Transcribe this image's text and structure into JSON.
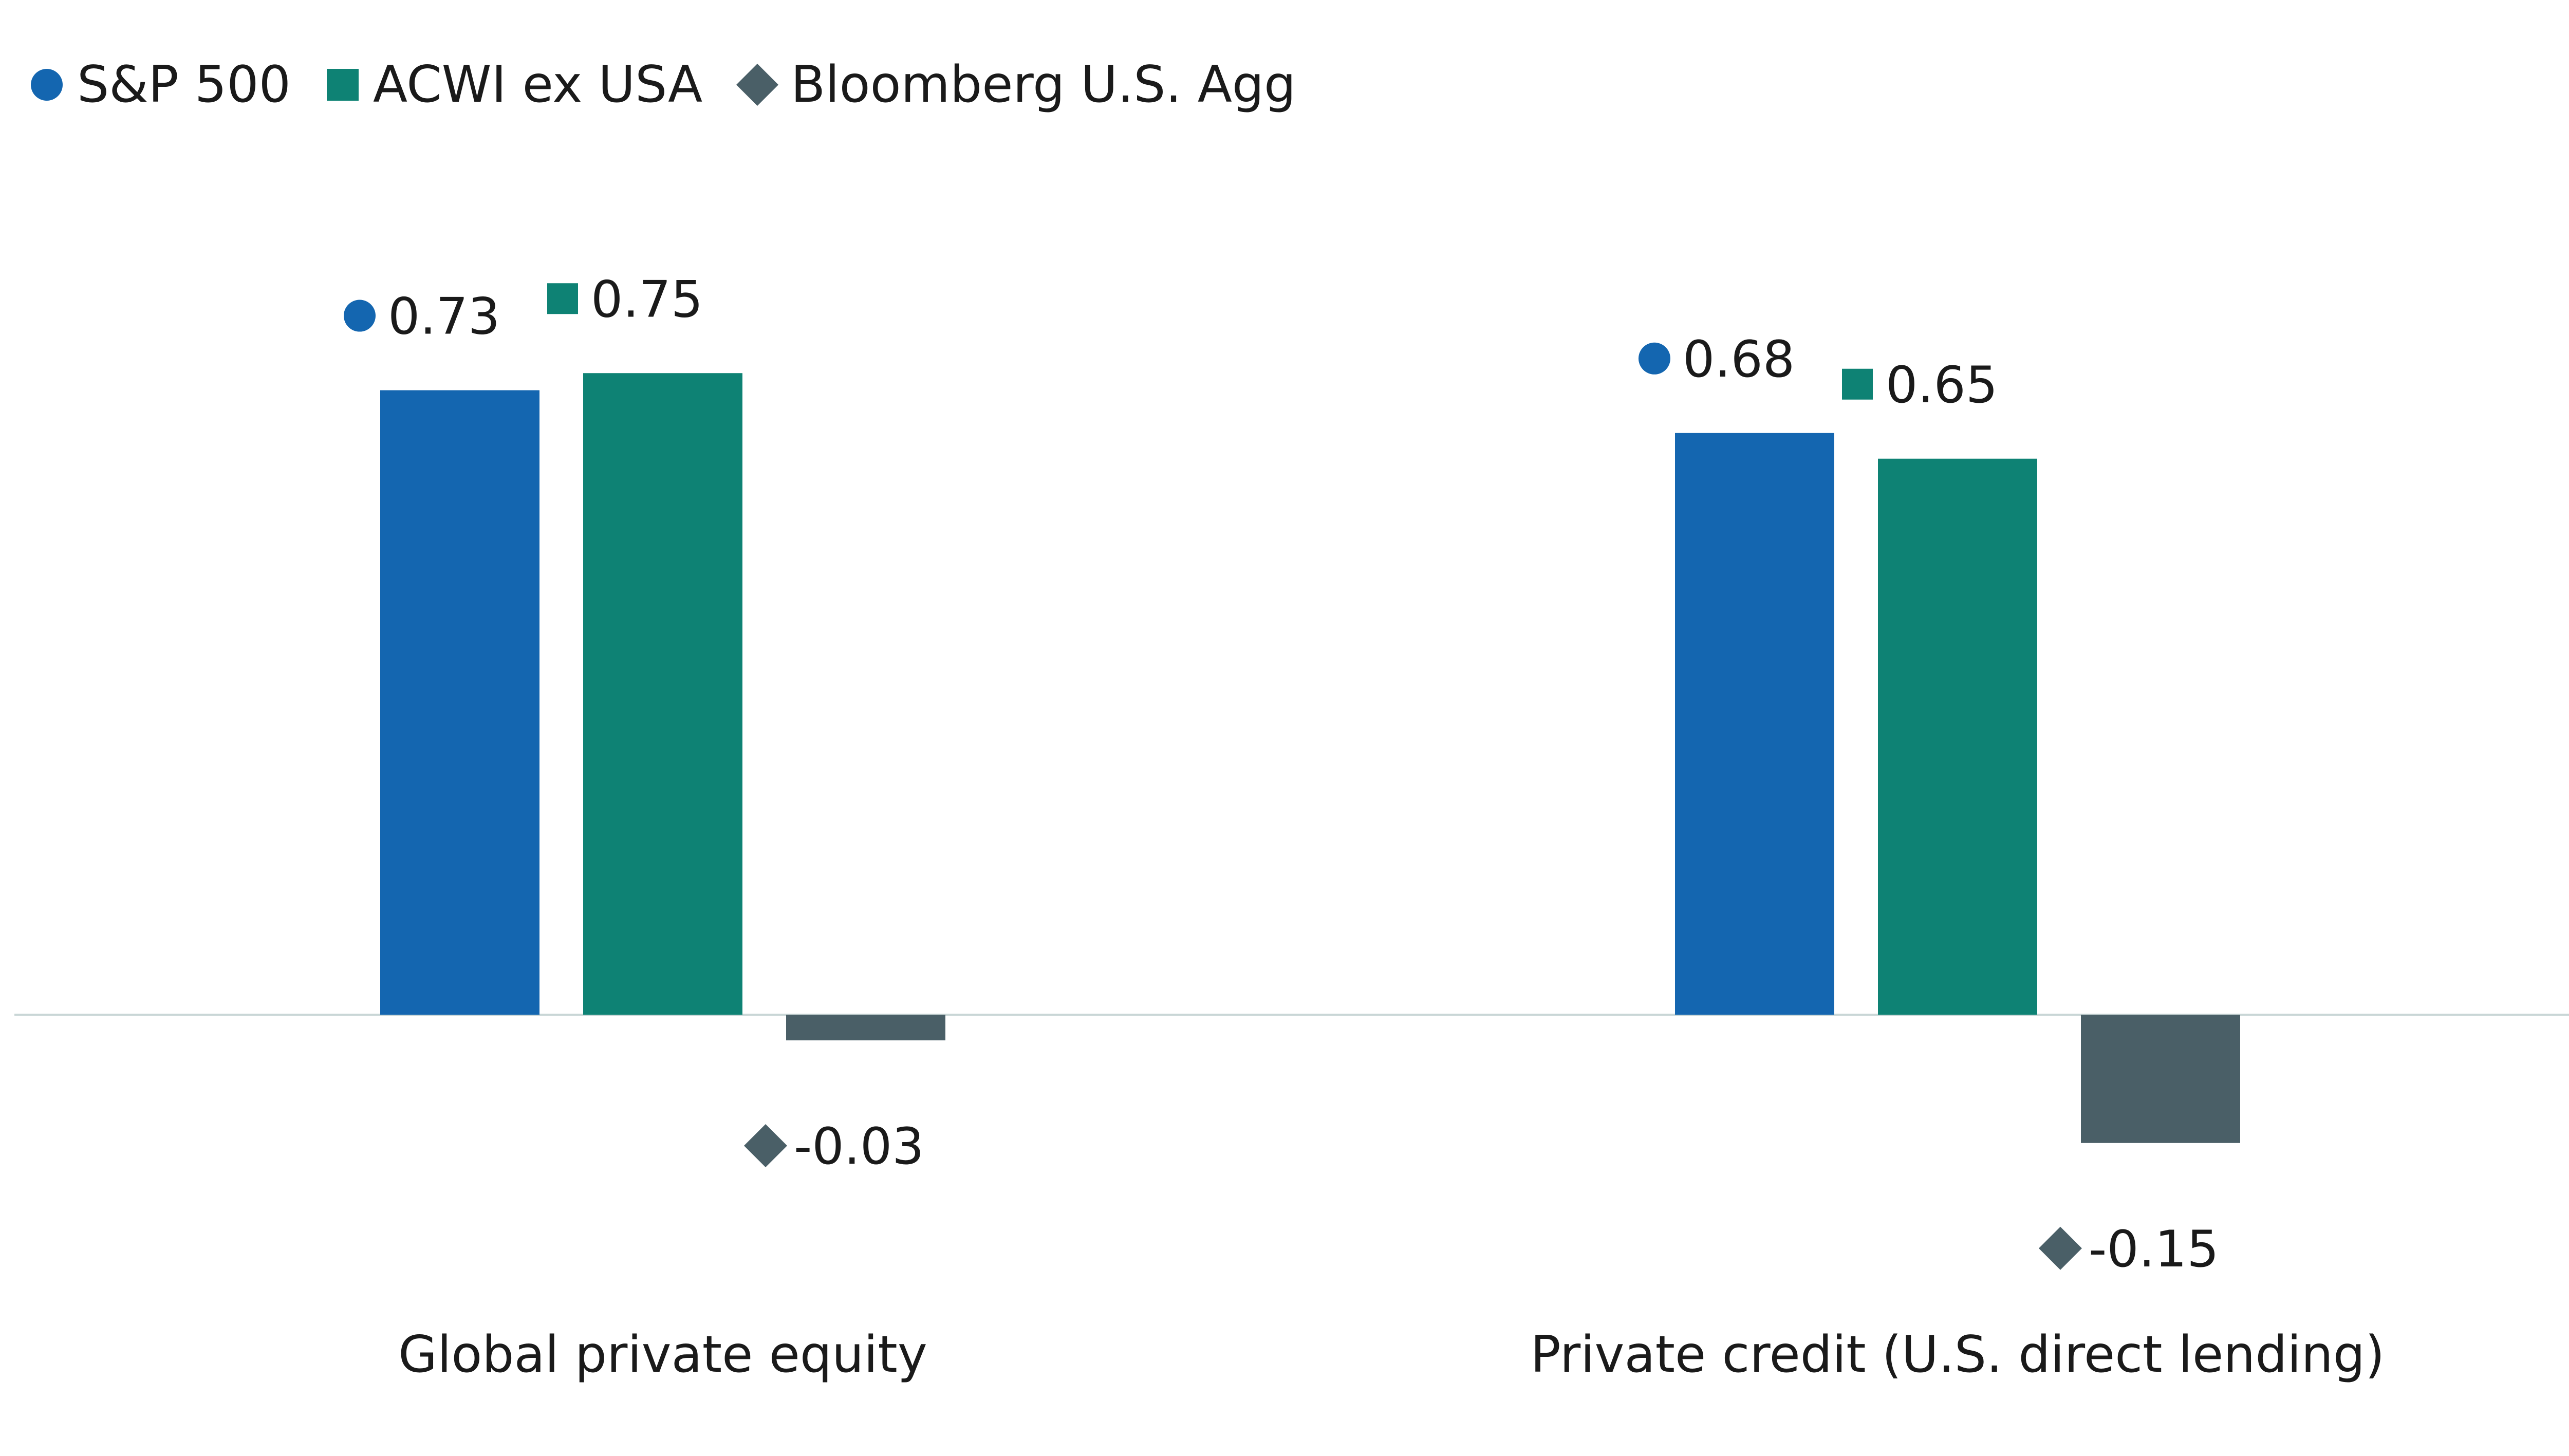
{
  "legend": {
    "items": [
      {
        "label": "S&P 500",
        "marker": "circle",
        "color": "#1466b0"
      },
      {
        "label": "ACWI ex USA",
        "marker": "square",
        "color": "#0e8274"
      },
      {
        "label": "Bloomberg U.S. Agg",
        "marker": "diamond",
        "color": "#4a5f67"
      }
    ]
  },
  "chart_data": {
    "type": "bar",
    "categories": [
      "Global private equity",
      "Private credit (U.S. direct lending)"
    ],
    "series": [
      {
        "name": "S&P 500",
        "marker": "circle",
        "color": "#1466b0",
        "values": [
          0.73,
          0.68
        ],
        "labels": [
          "0.73",
          "0.68"
        ]
      },
      {
        "name": "ACWI ex USA",
        "marker": "square",
        "color": "#0e8274",
        "values": [
          0.75,
          0.65
        ],
        "labels": [
          "0.75",
          "0.65"
        ]
      },
      {
        "name": "Bloomberg U.S. Agg",
        "marker": "diamond",
        "color": "#4a5f67",
        "values": [
          -0.03,
          -0.15
        ],
        "labels": [
          "-0.03",
          "-0.15"
        ]
      }
    ],
    "ylim": [
      -0.3,
      0.85
    ],
    "grid": false,
    "legend_position": "top-left",
    "baseline_color": "#c9d6d6"
  }
}
